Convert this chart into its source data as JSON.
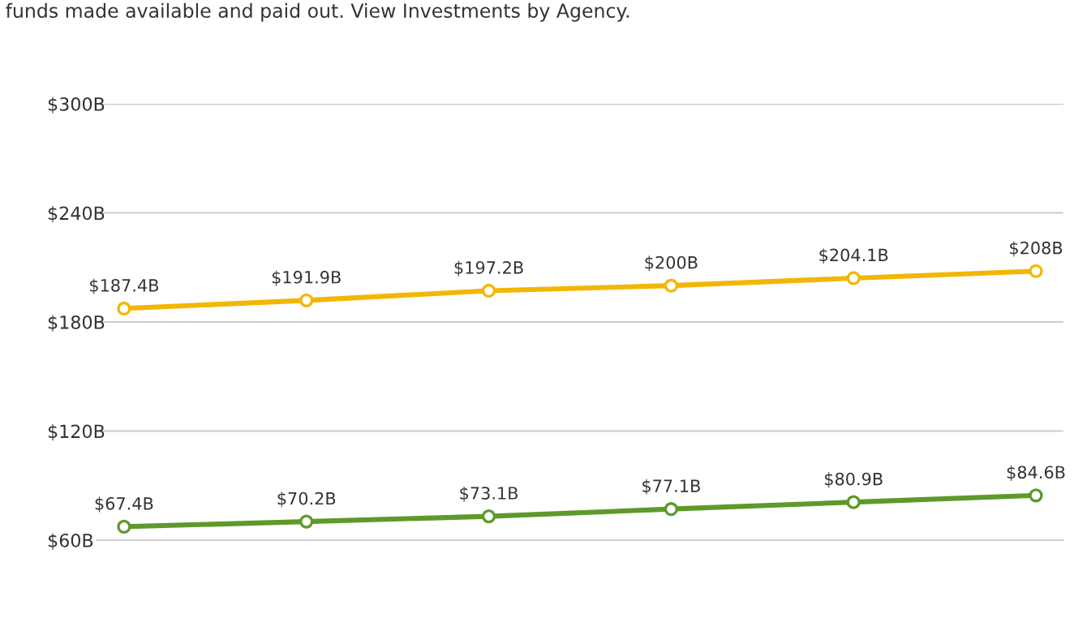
{
  "chart_data": {
    "type": "line",
    "title": "funds made available and paid out. View Investments by Agency.",
    "categories": [
      null,
      null,
      null,
      null,
      null,
      null
    ],
    "series": [
      {
        "color": "#f2b705",
        "values": [
          187.4,
          191.9,
          197.2,
          200,
          204.1,
          208
        ],
        "value_labels": [
          "$187.4B",
          "$191.9B",
          "$197.2B",
          "$200B",
          "$204.1B",
          "$208B"
        ]
      },
      {
        "color": "#5e9a2a",
        "values": [
          67.4,
          70.2,
          73.1,
          77.1,
          80.9,
          84.6
        ],
        "value_labels": [
          "$67.4B",
          "$70.2B",
          "$73.1B",
          "$77.1B",
          "$80.9B",
          "$84.6B"
        ]
      }
    ],
    "ylim": [
      60,
      300
    ],
    "yticks": [
      {
        "value": 60,
        "label": "$60B"
      },
      {
        "value": 120,
        "label": "$120B"
      },
      {
        "value": 180,
        "label": "$180B"
      },
      {
        "value": 240,
        "label": "$240B"
      },
      {
        "value": 300,
        "label": "$300B"
      }
    ],
    "grid": "y",
    "marker": "circle",
    "line_style": "solid",
    "legend": false
  }
}
